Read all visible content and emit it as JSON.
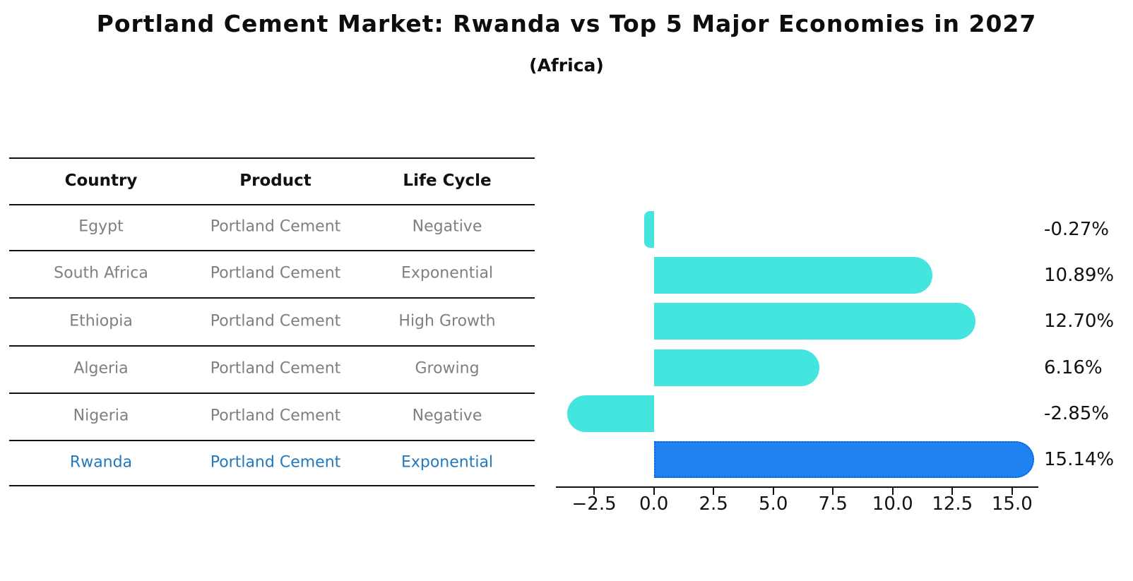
{
  "title": "Portland Cement Market: Rwanda vs Top 5 Major Economies in 2027",
  "subtitle": "(Africa)",
  "table": {
    "headers": [
      "Country",
      "Product",
      "Life Cycle"
    ],
    "rows": [
      {
        "country": "Egypt",
        "product": "Portland Cement",
        "life_cycle": "Negative",
        "highlight": false
      },
      {
        "country": "South Africa",
        "product": "Portland Cement",
        "life_cycle": "Exponential",
        "highlight": false
      },
      {
        "country": "Ethiopia",
        "product": "Portland Cement",
        "life_cycle": "High Growth",
        "highlight": false
      },
      {
        "country": "Algeria",
        "product": "Portland Cement",
        "life_cycle": "Growing",
        "highlight": false
      },
      {
        "country": "Nigeria",
        "product": "Portland Cement",
        "life_cycle": "Negative",
        "highlight": false
      },
      {
        "country": "Rwanda",
        "product": "Portland Cement",
        "life_cycle": "Exponential",
        "highlight": true
      }
    ]
  },
  "chart_data": {
    "type": "bar",
    "orientation": "horizontal",
    "title": "Portland Cement Market: Rwanda vs Top 5 Major Economies in 2027",
    "subtitle": "(Africa)",
    "categories": [
      "Egypt",
      "South Africa",
      "Ethiopia",
      "Algeria",
      "Nigeria",
      "Rwanda"
    ],
    "values": [
      -0.27,
      10.89,
      12.7,
      6.16,
      -2.85,
      15.14
    ],
    "value_labels": [
      "-0.27%",
      "10.89%",
      "12.70%",
      "6.16%",
      "-2.85%",
      "15.14%"
    ],
    "units": "percent",
    "x_ticks": [
      -2.5,
      0.0,
      2.5,
      5.0,
      7.5,
      10.0,
      12.5,
      15.0
    ],
    "x_tick_labels": [
      "−2.5",
      "0.0",
      "2.5",
      "5.0",
      "7.5",
      "10.0",
      "12.5",
      "15.0"
    ],
    "xlim": [
      -4.1,
      16.1
    ],
    "grid": false,
    "legend": "none",
    "bar_color": "#45E5DF",
    "highlight_index": 5,
    "highlight_color": "#1E82F0",
    "highlight_border_color": "#0E62DB",
    "text_color": "#111111",
    "muted_text_color": "#7f7f7f",
    "highlight_text_color": "#2478BE"
  }
}
